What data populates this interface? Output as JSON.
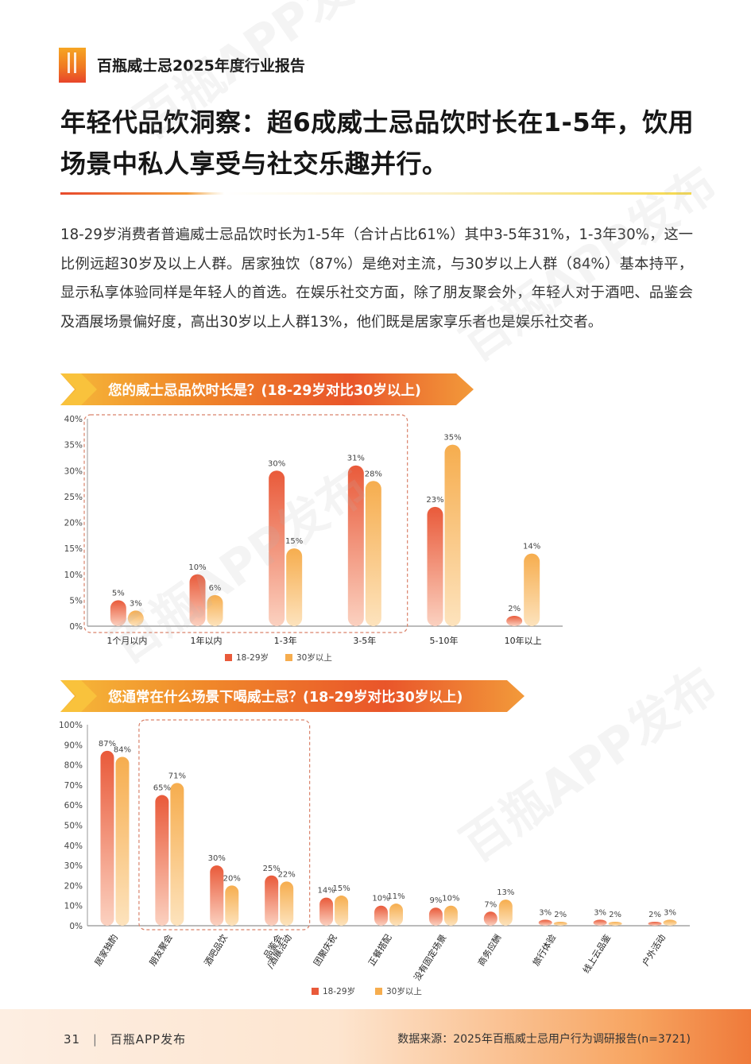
{
  "header": {
    "title": "百瓶威士忌2025年度行业报告"
  },
  "main_title": "年轻代品饮洞察：超6成威士忌品饮时长在1-5年，饮用场景中私人享受与社交乐趣并行。",
  "intro": "18-29岁消费者普遍威士忌品饮时长为1-5年（合计占比61%）其中3-5年31%，1-3年30%，这一比例远超30岁及以上人群。居家独饮（87%）是绝对主流，与30岁以上人群（84%）基本持平，显示私享体验同样是年轻人的首选。在娱乐社交方面，除了朋友聚会外，年轻人对于酒吧、品鉴会及酒展场景偏好度，高出30岁以上人群13%，他们既是居家享乐者也是娱乐社交者。",
  "colors": {
    "young": "#e95a3a",
    "old": "#f6ad4e",
    "highlight": "#d9826a"
  },
  "watermark": "百瓶APP发布",
  "chart_data": [
    {
      "type": "bar",
      "title": "您的威士忌品饮时长是？(18-29岁对比30岁以上)",
      "categories": [
        "1个月以内",
        "1年以内",
        "1-3年",
        "3-5年",
        "5-10年",
        "10年以上"
      ],
      "series": [
        {
          "name": "18-29岁",
          "values": [
            5,
            10,
            30,
            31,
            23,
            2
          ]
        },
        {
          "name": "30岁以上",
          "values": [
            3,
            6,
            15,
            28,
            35,
            14
          ]
        }
      ],
      "ylim": [
        0,
        40
      ],
      "yticks": [
        "0%",
        "5%",
        "10%",
        "15%",
        "20%",
        "25%",
        "30%",
        "35%",
        "40%"
      ],
      "legend_position": "bottom"
    },
    {
      "type": "bar",
      "title": "您通常在什么场景下喝威士忌？(18-29岁对比30岁以上)",
      "categories": [
        "居家独酌",
        "朋友聚会",
        "酒吧品饮",
        "品鉴会\n/酒展活动",
        "团聚庆祝",
        "正餐搭配",
        "没有固定场景",
        "商务应酬",
        "旅行体验",
        "线上云品鉴",
        "户外活动"
      ],
      "series": [
        {
          "name": "18-29岁",
          "values": [
            87,
            65,
            30,
            25,
            14,
            10,
            9,
            7,
            3,
            3,
            2
          ]
        },
        {
          "name": "30岁以上",
          "values": [
            84,
            71,
            20,
            22,
            15,
            11,
            10,
            13,
            2,
            2,
            3
          ]
        }
      ],
      "ylim": [
        0,
        100
      ],
      "yticks": [
        "0%",
        "10%",
        "20%",
        "30%",
        "40%",
        "50%",
        "60%",
        "70%",
        "80%",
        "90%",
        "100%"
      ],
      "legend_position": "bottom"
    }
  ],
  "footer": {
    "page": "31",
    "brand": "百瓶APP发布",
    "source": "数据来源：2025年百瓶威士忌用户行为调研报告(n=3721)"
  }
}
